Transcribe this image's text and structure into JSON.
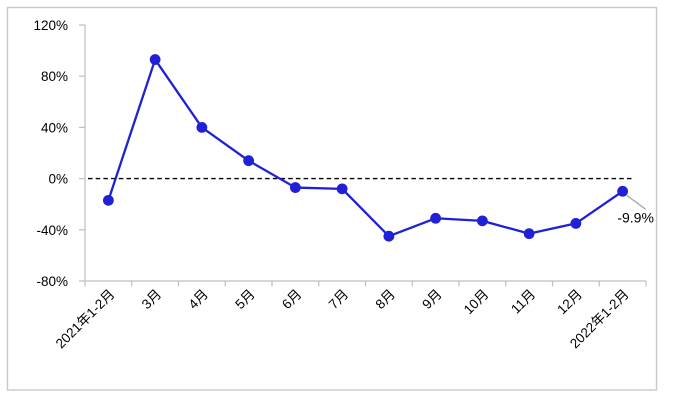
{
  "chart_data": {
    "type": "line",
    "title": "",
    "categories": [
      "2021年1-2月",
      "3月",
      "4月",
      "5月",
      "6月",
      "7月",
      "8月",
      "9月",
      "10月",
      "11月",
      "12月",
      "2022年1-2月"
    ],
    "values": [
      -17,
      93,
      40,
      14,
      -7,
      -8,
      -45,
      -31,
      -33,
      -43,
      -35,
      -9.9
    ],
    "y_ticks": [
      {
        "value": 120,
        "label": "120%"
      },
      {
        "value": 80,
        "label": "80%"
      },
      {
        "value": 40,
        "label": "40%"
      },
      {
        "value": 0,
        "label": "0%"
      },
      {
        "value": -40,
        "label": "-40%"
      },
      {
        "value": -80,
        "label": "-80%"
      }
    ],
    "ylim": [
      -80,
      120
    ],
    "xlabel": "",
    "ylabel": "",
    "grid": false,
    "legend": false,
    "zero_line": {
      "style": "dashed",
      "value": 0
    },
    "annotation": {
      "text": "-9.9%",
      "point_index": 11
    },
    "colors": {
      "line": "#2020d6",
      "marker": "#2020d6",
      "zero_line": "#000000",
      "axis": "#bfbfbf",
      "text": "#000000",
      "border": "#c9c9c9",
      "leader": "#a6a6a6",
      "background": "#ffffff"
    }
  }
}
